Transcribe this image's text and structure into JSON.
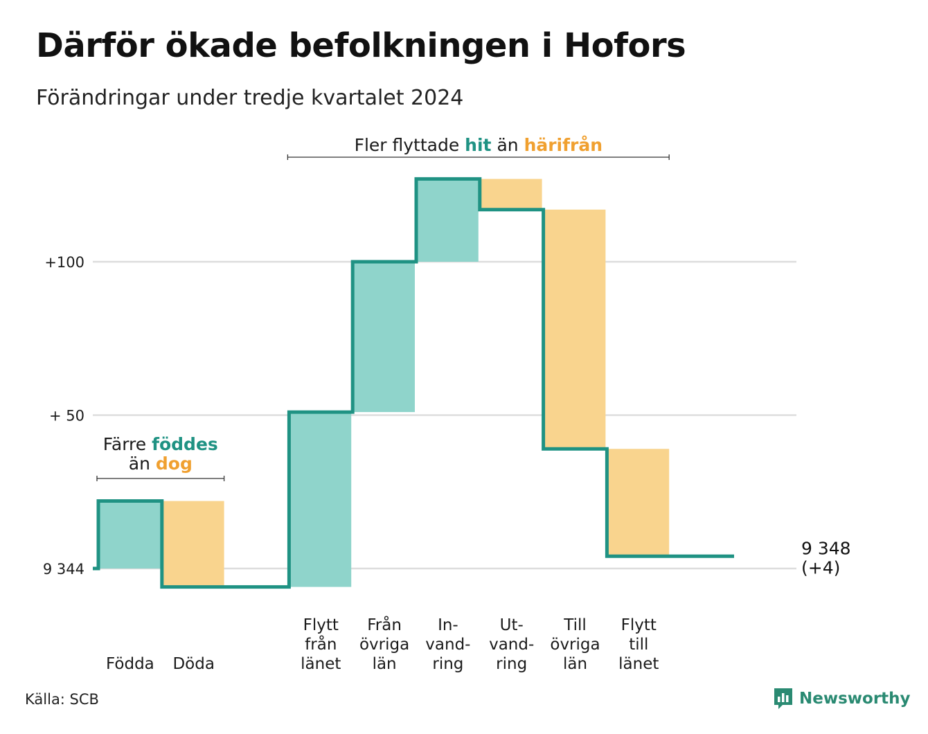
{
  "header": {
    "title": "Därför ökade befolkningen i Hofors",
    "subtitle": "Förändringar under tredje kvartalet 2024"
  },
  "colors": {
    "in": "#8fd4cb",
    "out": "#f9d48e",
    "line": "#1f9283",
    "teal_text": "#1f9283",
    "orange_text": "#f0a030",
    "grid": "#dddddd"
  },
  "chart_data": {
    "type": "waterfall",
    "title": "Därför ökade befolkningen i Hofors",
    "subtitle": "Förändringar under tredje kvartalet 2024",
    "baseline": 9344,
    "final_value": 9348,
    "final_label": "9 348",
    "final_change_label": "(+4)",
    "ylim": [
      -6,
      128
    ],
    "yticks": [
      {
        "value": 0,
        "label": "9 344"
      },
      {
        "value": 50,
        "label": "+ 50"
      },
      {
        "value": 100,
        "label": "+100"
      }
    ],
    "grid": true,
    "steps": [
      {
        "label_lines": [
          "Födda"
        ],
        "change": 22,
        "direction": "in"
      },
      {
        "label_lines": [
          "Döda"
        ],
        "change": -28,
        "direction": "out"
      },
      {
        "label_lines": [
          ""
        ],
        "change": 0,
        "direction": "none"
      },
      {
        "label_lines": [
          "Flytt",
          "från",
          "länet"
        ],
        "change": 57,
        "direction": "in"
      },
      {
        "label_lines": [
          "Från",
          "övriga",
          "län"
        ],
        "change": 49,
        "direction": "in"
      },
      {
        "label_lines": [
          "In-",
          "vand-",
          "ring"
        ],
        "change": 27,
        "direction": "in"
      },
      {
        "label_lines": [
          "Ut-",
          "vand-",
          "ring"
        ],
        "change": -10,
        "direction": "out"
      },
      {
        "label_lines": [
          "Till",
          "övriga",
          "län"
        ],
        "change": -78,
        "direction": "out"
      },
      {
        "label_lines": [
          "Flytt",
          "till",
          "länet"
        ],
        "change": -35,
        "direction": "out"
      },
      {
        "label_lines": [
          ""
        ],
        "change": 0,
        "direction": "none"
      }
    ],
    "annotations": [
      {
        "parts": [
          [
            "Färre ",
            "plain"
          ],
          [
            "föddes",
            "teal"
          ]
        ],
        "parts2": [
          [
            "än ",
            "plain"
          ],
          [
            "dog",
            "orange"
          ]
        ],
        "from_step": 0,
        "to_step": 1
      },
      {
        "parts": [
          [
            "Fler flyttade ",
            "plain"
          ],
          [
            "hit",
            "teal"
          ],
          [
            "  än ",
            "plain"
          ],
          [
            "härifrån",
            "orange"
          ]
        ],
        "parts2": [],
        "from_step": 3,
        "to_step": 8
      }
    ]
  },
  "footer": {
    "source": "Källa: SCB",
    "brand": "Newsworthy",
    "brand_icon": "newsworthy-logo-icon"
  }
}
